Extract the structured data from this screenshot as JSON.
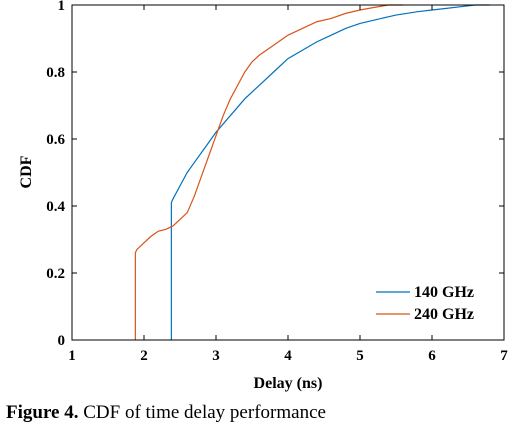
{
  "caption": {
    "label": "Figure 4.",
    "text": "CDF of time delay performance"
  },
  "chart_data": {
    "type": "line",
    "title": "",
    "xlabel": "Delay (ns)",
    "ylabel": "CDF",
    "xlim": [
      1,
      7
    ],
    "ylim": [
      0,
      1
    ],
    "xticks": [
      "1",
      "2",
      "3",
      "4",
      "5",
      "6",
      "7"
    ],
    "yticks": [
      "0",
      "0.2",
      "0.4",
      "0.6",
      "0.8",
      "1"
    ],
    "grid": false,
    "legend_position": "bottom-right",
    "series": [
      {
        "name": "140 GHz",
        "color": "#0072BD",
        "x": [
          2.38,
          2.38,
          2.4,
          2.5,
          2.6,
          2.7,
          2.8,
          2.9,
          3.0,
          3.2,
          3.4,
          3.6,
          3.8,
          4.0,
          4.2,
          4.4,
          4.6,
          4.8,
          5.0,
          5.2,
          5.5,
          5.8,
          6.0,
          6.2,
          6.4,
          6.6,
          6.8
        ],
        "values": [
          0,
          0.41,
          0.42,
          0.46,
          0.5,
          0.53,
          0.56,
          0.59,
          0.62,
          0.67,
          0.72,
          0.76,
          0.8,
          0.84,
          0.865,
          0.89,
          0.91,
          0.93,
          0.945,
          0.955,
          0.97,
          0.98,
          0.985,
          0.99,
          0.995,
          1.0,
          1.0
        ]
      },
      {
        "name": "240 GHz",
        "color": "#D95319",
        "x": [
          1.88,
          1.88,
          1.9,
          2.0,
          2.1,
          2.2,
          2.3,
          2.4,
          2.5,
          2.6,
          2.7,
          2.8,
          2.9,
          3.0,
          3.1,
          3.2,
          3.3,
          3.4,
          3.5,
          3.6,
          3.8,
          4.0,
          4.2,
          4.4,
          4.6,
          4.8,
          5.0,
          5.2,
          5.4,
          5.6
        ],
        "values": [
          0,
          0.26,
          0.27,
          0.29,
          0.31,
          0.325,
          0.33,
          0.34,
          0.36,
          0.38,
          0.43,
          0.49,
          0.55,
          0.61,
          0.67,
          0.72,
          0.76,
          0.8,
          0.83,
          0.85,
          0.88,
          0.91,
          0.93,
          0.95,
          0.96,
          0.975,
          0.985,
          0.993,
          1.0,
          1.0
        ]
      }
    ]
  }
}
